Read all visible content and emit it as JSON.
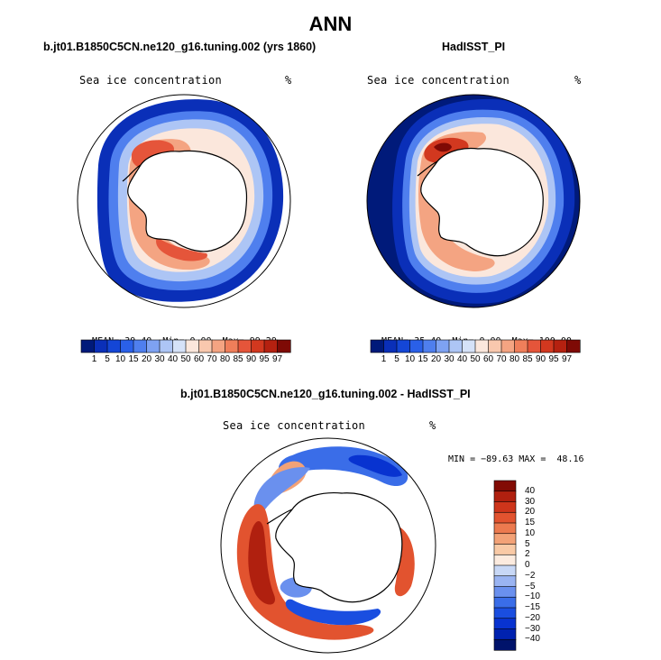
{
  "figure": {
    "title": "ANN"
  },
  "colors": {
    "background": "#ffffff",
    "land": "#ffffff",
    "outline": "#000000",
    "ice_scale": [
      "#001a7a",
      "#0a2fb8",
      "#1446d6",
      "#2a60e8",
      "#4f7fee",
      "#7ea2f2",
      "#adc5f5",
      "#d5e2f8",
      "#fbe7dc",
      "#f9c8ae",
      "#f4a482",
      "#ef7e5a",
      "#e5553a",
      "#d2381f",
      "#b52110",
      "#7e0a05"
    ],
    "diff_scale": [
      "#00136b",
      "#0022b0",
      "#0833d0",
      "#1a4ee0",
      "#3a6de8",
      "#6a90ee",
      "#9ab4f2",
      "#c8d8f6",
      "#fcebdf",
      "#f9caa6",
      "#f3a277",
      "#ec7a4f",
      "#e2532f",
      "#ce351b",
      "#b0200f",
      "#820b04"
    ]
  },
  "panels": [
    {
      "id": "model",
      "case_title": "b.jt01.B1850C5CN.ne120_g16.tuning.002 (yrs 1860)",
      "variable": "Sea ice concentration",
      "units": "%",
      "stats": {
        "mean_label": "MEAN=",
        "mean": "39.40",
        "min_label": "Min=",
        "min": "0.00",
        "max_label": "Max=",
        "max": "99.29"
      },
      "colorbar_ticks": [
        "1",
        "5",
        "10",
        "15",
        "20",
        "30",
        "40",
        "50",
        "60",
        "70",
        "80",
        "85",
        "90",
        "95",
        "97"
      ]
    },
    {
      "id": "obs",
      "case_title": "HadISST_PI",
      "variable": "Sea ice concentration",
      "units": "%",
      "stats": {
        "mean_label": "MEAN=",
        "mean": "35.40",
        "min_label": "Min=",
        "min": "0.00",
        "max_label": "Max=",
        "max": "100.00"
      },
      "colorbar_ticks": [
        "1",
        "5",
        "10",
        "15",
        "20",
        "30",
        "40",
        "50",
        "60",
        "70",
        "80",
        "85",
        "90",
        "95",
        "97"
      ]
    }
  ],
  "difference": {
    "title": "b.jt01.B1850C5CN.ne120_g16.tuning.002 - HadISST_PI",
    "variable": "Sea ice concentration",
    "units": "%",
    "range_text": "MIN = −89.63 MAX =  48.16",
    "colorbar_ticks": [
      "40",
      "30",
      "20",
      "15",
      "10",
      "5",
      "2",
      "0",
      "−2",
      "−5",
      "−10",
      "−15",
      "−20",
      "−30",
      "−40"
    ]
  }
}
